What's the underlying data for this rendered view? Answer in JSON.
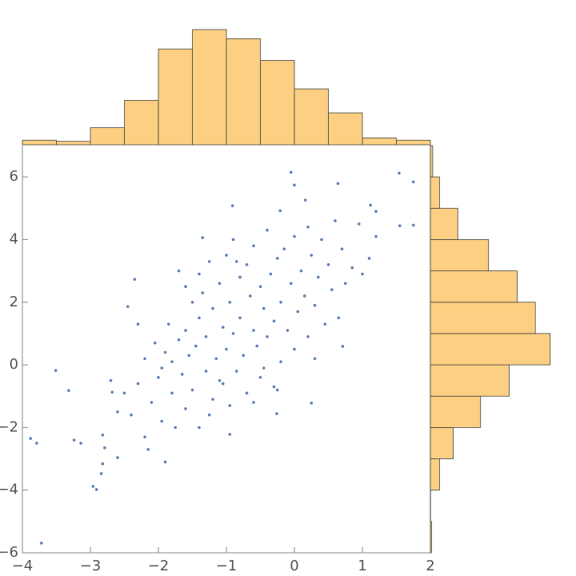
{
  "chart_data": [
    {
      "type": "scatter",
      "color": "#5e81b5",
      "xlim": [
        -4,
        2
      ],
      "ylim": [
        -6,
        7
      ],
      "xticks": [
        {
          "value": -4,
          "label": "−4"
        },
        {
          "value": -3,
          "label": "−3"
        },
        {
          "value": -2,
          "label": "−2"
        },
        {
          "value": -1,
          "label": "−1"
        },
        0,
        1,
        2
      ],
      "yticks": [
        {
          "value": -6,
          "label": "−6"
        },
        {
          "value": -4,
          "label": "−4"
        },
        {
          "value": -2,
          "label": "−2"
        },
        0,
        2,
        4,
        6
      ],
      "series": [
        {
          "x": [
            -3.72,
            -3.88,
            -3.79,
            -3.51,
            -3.32,
            -3.24,
            -3.14,
            -2.96,
            -2.91,
            -2.82,
            -2.84,
            -2.82,
            -2.79,
            -2.68,
            -2.6,
            -2.45,
            -2.35,
            -0.05,
            0.0,
            0.16,
            0.64,
            1.54,
            1.75,
            1.75,
            1.55,
            1.12,
            1.2,
            -0.91,
            -0.21,
            0.25,
            -0.26,
            -0.95,
            0.71,
            -1.35,
            -2.5,
            -2.4,
            -2.3,
            -2.2,
            -2.2,
            -2.1,
            -2.05,
            -2.0,
            -1.95,
            -1.9,
            -1.9,
            -1.85,
            -1.8,
            -1.8,
            -1.75,
            -1.7,
            -1.7,
            -1.65,
            -1.6,
            -1.6,
            -1.55,
            -1.5,
            -1.5,
            -1.45,
            -1.4,
            -1.4,
            -1.35,
            -1.3,
            -1.3,
            -1.25,
            -1.2,
            -1.2,
            -1.15,
            -1.1,
            -1.1,
            -1.05,
            -1.0,
            -1.0,
            -0.95,
            -0.95,
            -0.9,
            -0.9,
            -0.85,
            -0.8,
            -0.8,
            -0.75,
            -0.7,
            -0.7,
            -0.65,
            -0.6,
            -0.6,
            -0.55,
            -0.5,
            -0.5,
            -0.45,
            -0.4,
            -0.4,
            -0.35,
            -0.3,
            -0.3,
            -0.25,
            -0.2,
            -0.2,
            -0.15,
            -0.1,
            -0.05,
            0.0,
            0.0,
            0.05,
            0.1,
            0.15,
            0.2,
            0.2,
            0.25,
            0.3,
            0.35,
            0.4,
            0.45,
            0.5,
            0.55,
            0.6,
            0.65,
            0.7,
            0.75,
            0.85,
            0.95,
            1.0,
            1.1,
            1.2,
            -2.6,
            -2.7,
            -2.3,
            -2.15,
            -1.95,
            -1.6,
            -1.25,
            -1.05,
            -0.85,
            -0.6,
            -0.45,
            -1.4,
            -0.25,
            0.3
          ],
          "y": [
            -5.69,
            -2.35,
            -2.5,
            -0.18,
            -0.82,
            -2.4,
            -2.5,
            -3.88,
            -3.98,
            -2.24,
            -3.47,
            -3.16,
            -2.65,
            -0.87,
            -2.96,
            1.86,
            2.73,
            6.15,
            5.74,
            5.26,
            5.79,
            6.12,
            5.84,
            4.46,
            4.44,
            5.1,
            4.9,
            5.08,
            4.92,
            -1.22,
            -1.56,
            -2.22,
            0.59,
            4.06,
            -0.9,
            -1.6,
            -0.6,
            0.2,
            -2.3,
            -1.2,
            0.7,
            -0.4,
            -1.8,
            0.4,
            -3.1,
            1.3,
            -0.9,
            0.1,
            -2.0,
            0.8,
            3.0,
            -0.3,
            1.1,
            -1.4,
            0.3,
            2.0,
            -0.8,
            0.6,
            -2.0,
            1.5,
            2.3,
            -0.2,
            0.9,
            3.3,
            -1.1,
            1.8,
            0.2,
            2.6,
            -0.5,
            1.2,
            3.5,
            0.5,
            -1.3,
            2.0,
            1.0,
            4.0,
            -0.2,
            2.8,
            1.5,
            0.3,
            3.2,
            -0.9,
            2.2,
            1.1,
            3.8,
            0.6,
            2.5,
            -0.4,
            1.8,
            4.3,
            0.9,
            2.9,
            -0.7,
            1.4,
            3.4,
            2.0,
            0.1,
            3.7,
            1.1,
            2.6,
            0.5,
            4.1,
            1.7,
            3.0,
            2.2,
            4.4,
            0.9,
            3.5,
            1.9,
            2.8,
            4.0,
            1.3,
            3.2,
            2.4,
            4.6,
            1.5,
            3.7,
            2.6,
            3.1,
            4.5,
            2.9,
            3.4,
            4.1,
            -1.5,
            -0.5,
            1.3,
            -2.7,
            -0.1,
            2.5,
            -1.6,
            -0.6,
            3.3,
            -1.2,
            -0.1,
            2.9,
            -0.8,
            0.2
          ]
        }
      ]
    },
    {
      "type": "histogram",
      "orientation": "vertical",
      "color": "#fccf82",
      "bins": [
        -4,
        -3.5,
        -3,
        -2.5,
        -2,
        -1.5,
        -1,
        -0.5,
        0,
        0.5,
        1,
        1.5,
        2
      ],
      "counts": [
        4,
        3,
        15,
        39,
        84,
        101,
        93,
        74,
        49,
        28,
        6,
        4
      ]
    },
    {
      "type": "histogram",
      "orientation": "horizontal",
      "color": "#fccf82",
      "bins": [
        -6,
        -5,
        -4,
        -3,
        -2,
        -1,
        0,
        1,
        2,
        3,
        4,
        5,
        6,
        7
      ],
      "counts": [
        1,
        0,
        8,
        20,
        44,
        69,
        105,
        92,
        76,
        51,
        24,
        8,
        2
      ]
    }
  ]
}
